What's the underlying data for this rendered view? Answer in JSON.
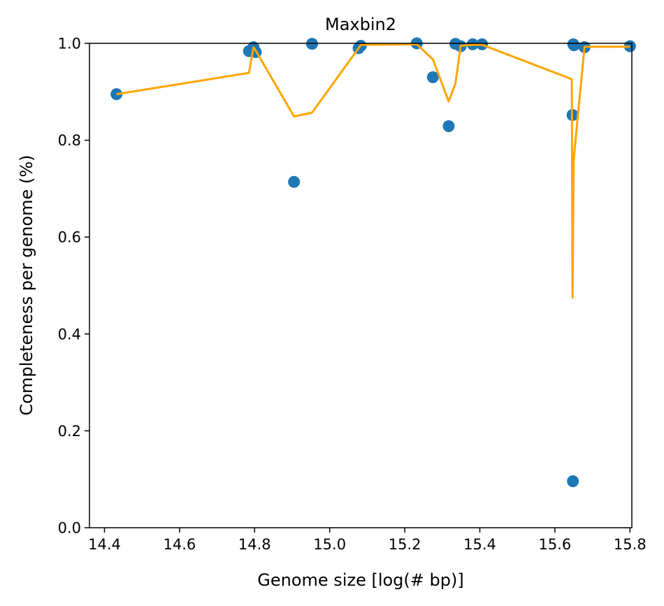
{
  "chart_data": {
    "type": "scatter",
    "title": "Maxbin2",
    "xlabel": "Genome size [log(# bp)]",
    "ylabel": "Completeness per genome (%)",
    "xlim": [
      14.36,
      15.805
    ],
    "ylim": [
      0.0,
      1.0
    ],
    "xticks": [
      "14.4",
      "14.6",
      "14.8",
      "15.0",
      "15.2",
      "15.4",
      "15.6",
      "15.8"
    ],
    "yticks": [
      "0.0",
      "0.2",
      "0.4",
      "0.6",
      "0.8",
      "1.0"
    ],
    "grid": false,
    "legend": "none",
    "series": [
      {
        "kind": "scatter",
        "color": "#1f77b4",
        "points": [
          {
            "x": 14.432,
            "y": 0.895
          },
          {
            "x": 14.785,
            "y": 0.984
          },
          {
            "x": 14.797,
            "y": 0.992
          },
          {
            "x": 14.803,
            "y": 0.982
          },
          {
            "x": 14.905,
            "y": 0.714
          },
          {
            "x": 14.953,
            "y": 0.999
          },
          {
            "x": 15.077,
            "y": 0.99
          },
          {
            "x": 15.083,
            "y": 0.995
          },
          {
            "x": 15.232,
            "y": 1.0
          },
          {
            "x": 15.275,
            "y": 0.93
          },
          {
            "x": 15.317,
            "y": 0.829
          },
          {
            "x": 15.335,
            "y": 0.999
          },
          {
            "x": 15.349,
            "y": 0.994
          },
          {
            "x": 15.381,
            "y": 0.998
          },
          {
            "x": 15.406,
            "y": 0.998
          },
          {
            "x": 15.647,
            "y": 0.852
          },
          {
            "x": 15.649,
            "y": 0.998
          },
          {
            "x": 15.651,
            "y": 0.996
          },
          {
            "x": 15.648,
            "y": 0.096
          },
          {
            "x": 15.679,
            "y": 0.992
          },
          {
            "x": 15.8,
            "y": 0.994
          }
        ]
      },
      {
        "kind": "line",
        "color": "#ffa500",
        "points": [
          {
            "x": 14.432,
            "y": 0.895
          },
          {
            "x": 14.785,
            "y": 0.939
          },
          {
            "x": 14.797,
            "y": 0.992
          },
          {
            "x": 14.803,
            "y": 0.985
          },
          {
            "x": 14.905,
            "y": 0.849
          },
          {
            "x": 14.953,
            "y": 0.857
          },
          {
            "x": 15.077,
            "y": 0.99
          },
          {
            "x": 15.083,
            "y": 0.997
          },
          {
            "x": 15.232,
            "y": 0.998
          },
          {
            "x": 15.275,
            "y": 0.967
          },
          {
            "x": 15.317,
            "y": 0.88
          },
          {
            "x": 15.335,
            "y": 0.917
          },
          {
            "x": 15.349,
            "y": 0.995
          },
          {
            "x": 15.381,
            "y": 0.997
          },
          {
            "x": 15.406,
            "y": 0.997
          },
          {
            "x": 15.645,
            "y": 0.926
          },
          {
            "x": 15.647,
            "y": 0.475
          },
          {
            "x": 15.65,
            "y": 0.76
          },
          {
            "x": 15.679,
            "y": 0.993
          },
          {
            "x": 15.8,
            "y": 0.993
          }
        ]
      }
    ]
  }
}
